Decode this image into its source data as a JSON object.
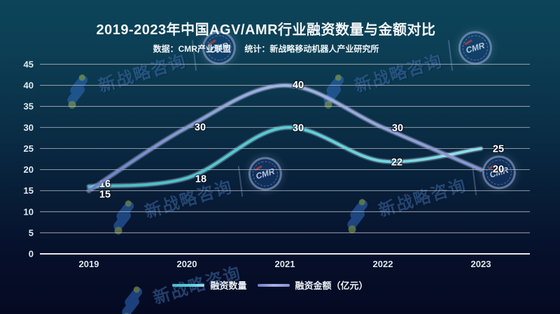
{
  "header": {
    "title": "2019-2023年中国AGV/AMR行业融资数量与金额对比",
    "subtitle_source": "数据：CMR产业联盟",
    "subtitle_stat": "统计：新战略移动机器人产业研究所"
  },
  "watermark": {
    "brand_text": "新战略咨询",
    "badge_text": "CMR"
  },
  "colors": {
    "background_top": "#0d4459",
    "background_bottom": "#050a22",
    "grid_line": "#cdd7e0",
    "count_line": "#55cdd8",
    "amount_line": "#8598d8",
    "label_text": "#ffffff"
  },
  "chart_data": {
    "type": "line",
    "title": "2019-2023年中国AGV/AMR行业融资数量与金额对比",
    "xlabel": "",
    "ylabel": "",
    "categories": [
      "2019",
      "2020",
      "2021",
      "2022",
      "2023"
    ],
    "series": [
      {
        "id": "financing-count",
        "name": "融资数量",
        "values": [
          16,
          18,
          30,
          22,
          25
        ],
        "gradient": [
          "#4cb8c6",
          "#55cdd8",
          "#8fdeea"
        ],
        "label_offsets": [
          [
            23,
            -4
          ],
          [
            20,
            1
          ],
          [
            19,
            0
          ],
          [
            20,
            1
          ],
          [
            25,
            0
          ]
        ]
      },
      {
        "id": "financing-amount",
        "name": "融资金额（亿元）",
        "values": [
          15,
          30,
          40,
          30,
          20
        ],
        "gradient": [
          "#6a80c8",
          "#a5b4e7",
          "#8593d6"
        ],
        "label_offsets": [
          [
            23,
            5
          ],
          [
            19,
            -1
          ],
          [
            19,
            -1
          ],
          [
            21,
            0
          ],
          [
            25,
            -1
          ]
        ]
      }
    ],
    "ylim": [
      0,
      45
    ],
    "ytick_step": 5,
    "grid": true,
    "legend_position": "bottom"
  }
}
